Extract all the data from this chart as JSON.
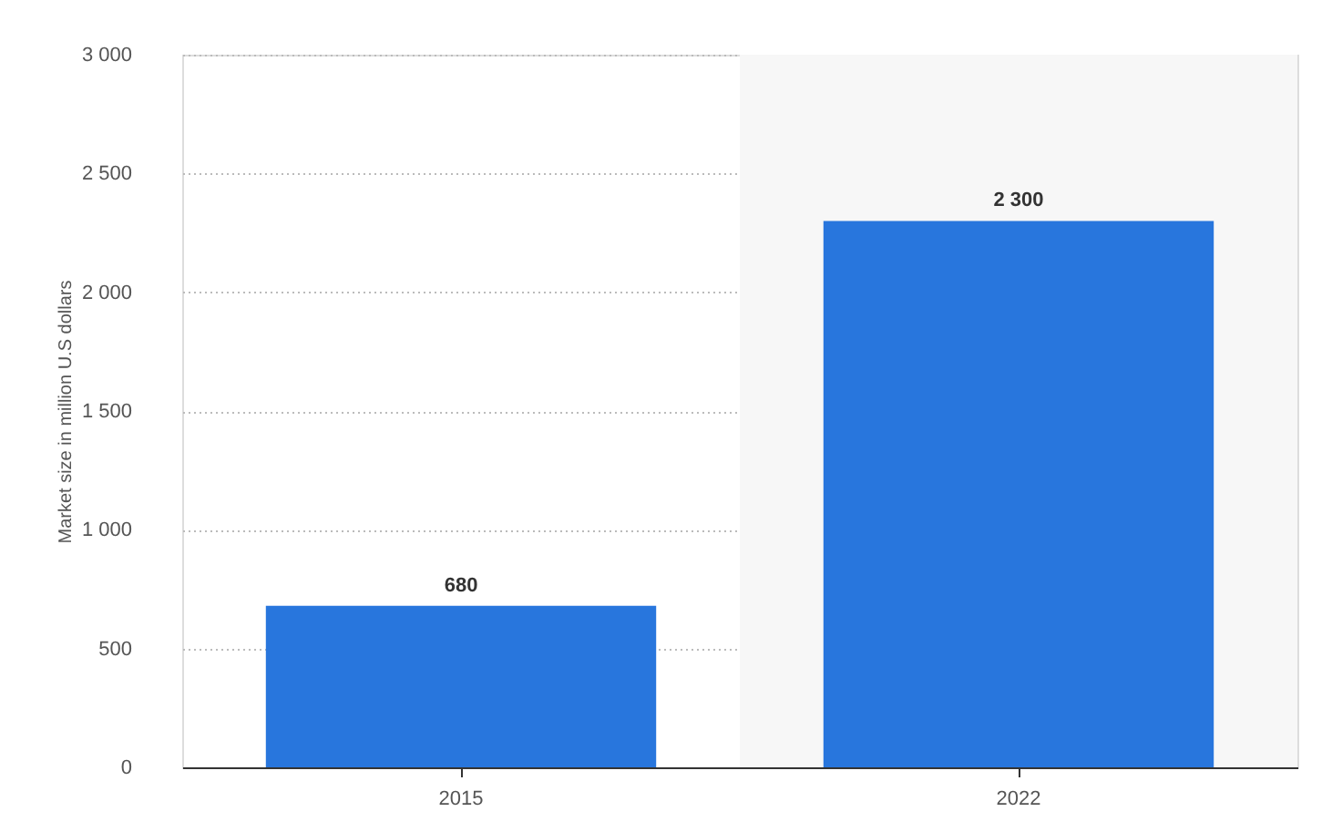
{
  "chart_data": {
    "type": "bar",
    "ylabel": "Market size in million U.S dollars",
    "categories": [
      "2015",
      "2022"
    ],
    "values": [
      680,
      2300
    ],
    "color": "#2876dd",
    "value_labels": [
      "680",
      "2 300"
    ],
    "ylim": [
      0,
      3000
    ],
    "yticks": [
      0,
      {
        "value": 500,
        "label": "500"
      },
      {
        "value": 1000,
        "label": "1 000"
      },
      {
        "value": 1500,
        "label": "1 500"
      },
      {
        "value": 2000,
        "label": "2 000"
      },
      {
        "value": 2500,
        "label": "2 500"
      },
      {
        "value": 3000,
        "label": "3 000"
      }
    ],
    "bands": [
      {
        "axis": "x",
        "from": "2022",
        "to": "2022",
        "color": "#f7f7f7"
      }
    ],
    "grid": "y"
  }
}
